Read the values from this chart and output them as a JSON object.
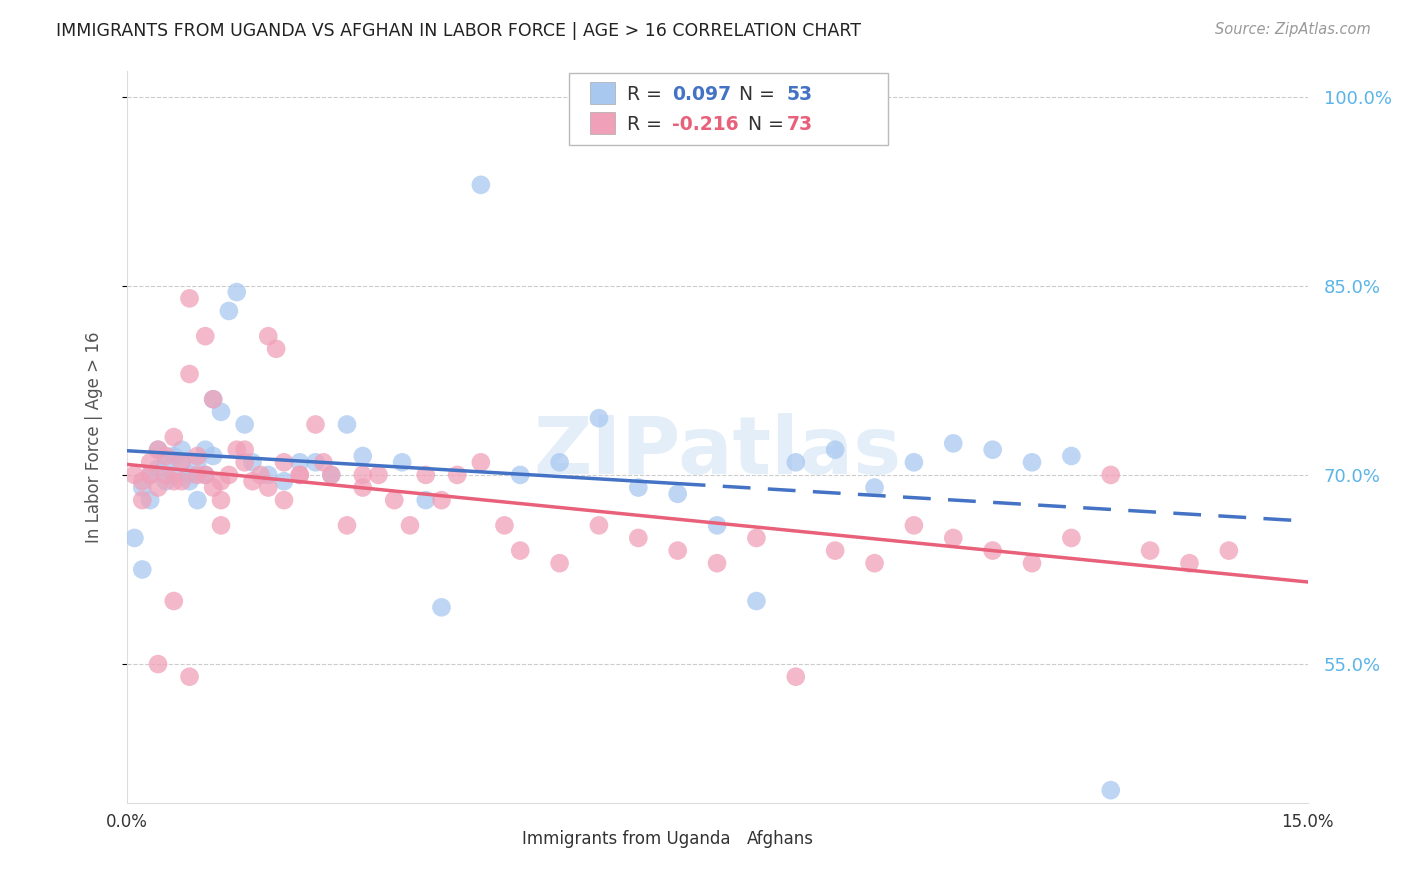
{
  "title": "IMMIGRANTS FROM UGANDA VS AFGHAN IN LABOR FORCE | AGE > 16 CORRELATION CHART",
  "source": "Source: ZipAtlas.com",
  "ylabel": "In Labor Force | Age > 16",
  "xlim": [
    0.0,
    0.15
  ],
  "ylim": [
    0.44,
    1.02
  ],
  "yticks": [
    0.55,
    0.7,
    0.85,
    1.0
  ],
  "ytick_labels": [
    "55.0%",
    "70.0%",
    "85.0%",
    "100.0%"
  ],
  "color_uganda": "#a8c8f0",
  "color_afghan": "#f0a0b8",
  "color_line_uganda": "#4472c4",
  "color_line_afghan": "#e8607a",
  "color_axis_right": "#5ab4e8",
  "watermark": "ZIPatlas",
  "uganda_x": [
    0.001,
    0.002,
    0.002,
    0.003,
    0.003,
    0.004,
    0.004,
    0.005,
    0.005,
    0.006,
    0.006,
    0.007,
    0.007,
    0.008,
    0.008,
    0.009,
    0.009,
    0.01,
    0.01,
    0.011,
    0.011,
    0.012,
    0.013,
    0.014,
    0.015,
    0.016,
    0.018,
    0.02,
    0.022,
    0.024,
    0.026,
    0.028,
    0.03,
    0.035,
    0.038,
    0.04,
    0.045,
    0.05,
    0.055,
    0.06,
    0.065,
    0.07,
    0.075,
    0.08,
    0.085,
    0.09,
    0.095,
    0.1,
    0.105,
    0.11,
    0.115,
    0.12,
    0.125
  ],
  "uganda_y": [
    0.65,
    0.625,
    0.69,
    0.7,
    0.68,
    0.72,
    0.705,
    0.695,
    0.71,
    0.7,
    0.715,
    0.71,
    0.72,
    0.7,
    0.695,
    0.71,
    0.68,
    0.7,
    0.72,
    0.715,
    0.76,
    0.75,
    0.83,
    0.845,
    0.74,
    0.71,
    0.7,
    0.695,
    0.71,
    0.71,
    0.7,
    0.74,
    0.715,
    0.71,
    0.68,
    0.595,
    0.93,
    0.7,
    0.71,
    0.745,
    0.69,
    0.685,
    0.66,
    0.6,
    0.71,
    0.72,
    0.69,
    0.71,
    0.725,
    0.72,
    0.71,
    0.715,
    0.45
  ],
  "afghan_x": [
    0.001,
    0.002,
    0.002,
    0.003,
    0.003,
    0.004,
    0.004,
    0.005,
    0.005,
    0.006,
    0.006,
    0.007,
    0.007,
    0.008,
    0.008,
    0.009,
    0.009,
    0.01,
    0.01,
    0.011,
    0.011,
    0.012,
    0.012,
    0.013,
    0.014,
    0.015,
    0.016,
    0.017,
    0.018,
    0.019,
    0.02,
    0.022,
    0.024,
    0.026,
    0.028,
    0.03,
    0.032,
    0.034,
    0.036,
    0.038,
    0.04,
    0.042,
    0.045,
    0.048,
    0.05,
    0.055,
    0.06,
    0.065,
    0.07,
    0.075,
    0.08,
    0.085,
    0.09,
    0.095,
    0.1,
    0.105,
    0.11,
    0.115,
    0.12,
    0.125,
    0.13,
    0.135,
    0.14,
    0.03,
    0.025,
    0.015,
    0.02,
    0.022,
    0.018,
    0.012,
    0.008,
    0.006,
    0.004
  ],
  "afghan_y": [
    0.7,
    0.695,
    0.68,
    0.71,
    0.7,
    0.69,
    0.72,
    0.715,
    0.7,
    0.695,
    0.73,
    0.71,
    0.695,
    0.84,
    0.78,
    0.7,
    0.715,
    0.81,
    0.7,
    0.76,
    0.69,
    0.695,
    0.68,
    0.7,
    0.72,
    0.71,
    0.695,
    0.7,
    0.81,
    0.8,
    0.71,
    0.7,
    0.74,
    0.7,
    0.66,
    0.69,
    0.7,
    0.68,
    0.66,
    0.7,
    0.68,
    0.7,
    0.71,
    0.66,
    0.64,
    0.63,
    0.66,
    0.65,
    0.64,
    0.63,
    0.65,
    0.54,
    0.64,
    0.63,
    0.66,
    0.65,
    0.64,
    0.63,
    0.65,
    0.7,
    0.64,
    0.63,
    0.64,
    0.7,
    0.71,
    0.72,
    0.68,
    0.7,
    0.69,
    0.66,
    0.54,
    0.6,
    0.55
  ]
}
